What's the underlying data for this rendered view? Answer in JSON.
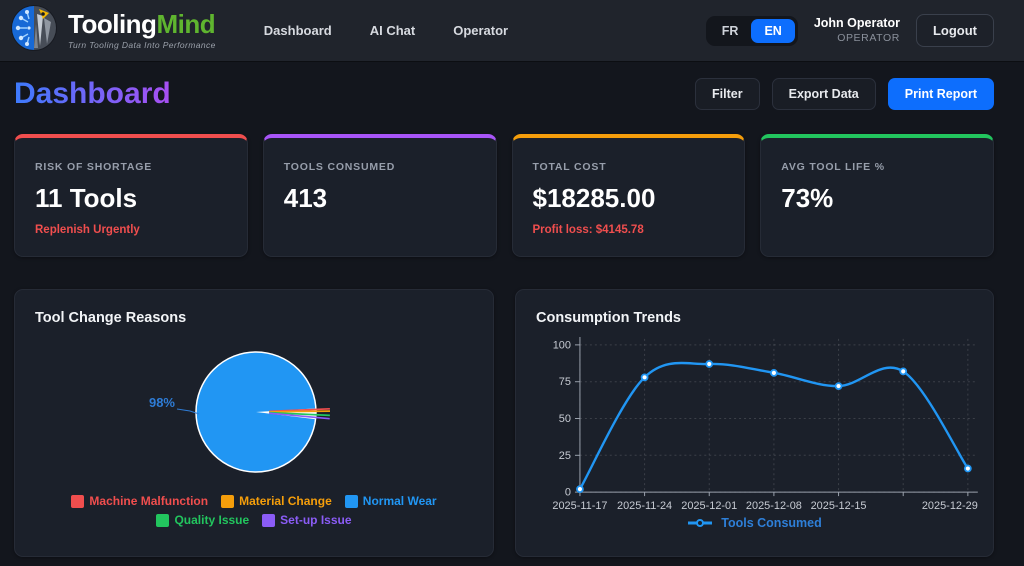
{
  "theme": {
    "primary_blue": "#0d6efd",
    "chart_blue": "#2196f3"
  },
  "brand": {
    "name_primary": "Tooling",
    "name_secondary": "Mind",
    "tagline": "Turn Tooling Data Into Performance"
  },
  "nav": {
    "items": [
      {
        "label": "Dashboard"
      },
      {
        "label": "AI Chat"
      },
      {
        "label": "Operator"
      }
    ]
  },
  "language": {
    "fr": "FR",
    "en": "EN",
    "selected": "EN"
  },
  "user": {
    "name": "John Operator",
    "role": "OPERATOR",
    "logout_label": "Logout"
  },
  "page": {
    "title": "Dashboard",
    "actions": {
      "filter": "Filter",
      "export": "Export Data",
      "print": "Print Report"
    }
  },
  "stats": [
    {
      "label": "RISK OF SHORTAGE",
      "value": "11 Tools",
      "note": "Replenish Urgently",
      "accent": "#f04e4e",
      "note_color": "#f04e4e"
    },
    {
      "label": "TOOLS CONSUMED",
      "value": "413",
      "note": "",
      "accent": "#a855f7",
      "note_color": "#f04e4e"
    },
    {
      "label": "TOTAL COST",
      "value": "$18285.00",
      "note": "Profit loss: $4145.78",
      "accent": "#f59e0b",
      "note_color": "#f04e4e"
    },
    {
      "label": "AVG TOOL LIFE %",
      "value": "73%",
      "note": "",
      "accent": "#22c55e",
      "note_color": "#f04e4e"
    }
  ],
  "chart_data": [
    {
      "type": "pie",
      "title": "Tool Change Reasons",
      "labels": [
        "Machine Malfunction",
        "Material Change",
        "Normal Wear",
        "Quality Issue",
        "Set-up Issue"
      ],
      "values": [
        0.5,
        0.5,
        98,
        0.5,
        0.5
      ],
      "colors": [
        "#f04e4e",
        "#f59e0b",
        "#2196f3",
        "#22c55e",
        "#8b5cf6"
      ],
      "data_label": "98%",
      "data_label_color": "#2e7cd6",
      "legend_position": "bottom"
    },
    {
      "type": "line",
      "title": "Consumption Trends",
      "x_tick_labels": [
        "2025-11-17",
        "2025-11-24",
        "2025-12-01",
        "2025-12-08",
        "2025-12-15",
        "",
        "2025-12-29"
      ],
      "series": [
        {
          "name": "Tools Consumed",
          "values": [
            2,
            78,
            87,
            81,
            72,
            82,
            16
          ],
          "color": "#2196f3"
        }
      ],
      "ylim": [
        0,
        100
      ],
      "yticks": [
        0,
        25,
        50,
        75,
        100
      ],
      "grid": true,
      "legend_position": "bottom",
      "legend_text_color": "#2e7fd8"
    }
  ]
}
